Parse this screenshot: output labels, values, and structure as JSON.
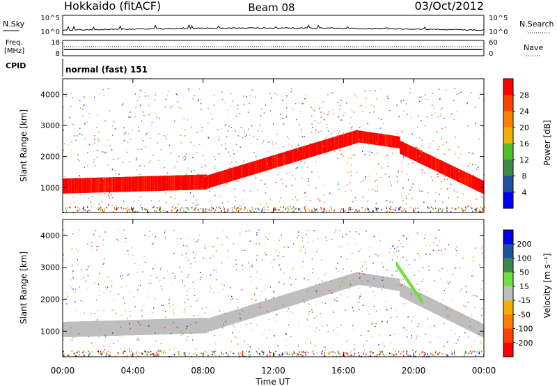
{
  "header": {
    "station": "Hokkaido (fitACF)",
    "beam": "Beam 08",
    "date": "03/Oct/2012"
  },
  "nsky_panel": {
    "left_label": "N.Sky",
    "right_label": "N.Search",
    "ticks": [
      "10^5",
      "10^0"
    ],
    "right_ticks": [
      "10^5",
      "10^0"
    ]
  },
  "freq_panel": {
    "left_label_line1": "Freq.",
    "left_label_line2": "[MHz]",
    "left_ticks": [
      "18",
      "8"
    ],
    "right_label": "Nave",
    "right_ticks": [
      "60",
      "0"
    ]
  },
  "cpid_panel": {
    "label": "CPID",
    "value": "normal (fast) 151"
  },
  "x_axis": {
    "label": "Time UT",
    "ticks": [
      "00:00",
      "04:00",
      "08:00",
      "12:00",
      "16:00",
      "20:00",
      "00:00"
    ]
  },
  "colors": {
    "power": [
      "#0000ee",
      "#2050a0",
      "#3a8a4a",
      "#4fbf2a",
      "#f0b000",
      "#ff8000",
      "#ff4000",
      "#ff0000"
    ],
    "velocity": [
      "#ff0000",
      "#ff4000",
      "#ff8000",
      "#f0b000",
      "#bebebe",
      "#70e040",
      "#3a8a4a",
      "#2050a0",
      "#0000ee"
    ],
    "ground_scatter": "#bebebe"
  },
  "chart_data": [
    {
      "type": "heatmap",
      "name": "power",
      "ylabel": "Slant Range [km]",
      "xlabel": "Time UT",
      "xlim": [
        0,
        24
      ],
      "ylim": [
        200,
        4500
      ],
      "y_ticks": [
        "1000",
        "2000",
        "3000",
        "4000"
      ],
      "colorbar": {
        "label": "Power [dB]",
        "ticks": [
          "4",
          "8",
          "12",
          "16",
          "20",
          "24",
          "28"
        ],
        "range": [
          0,
          32
        ]
      },
      "bands": [
        {
          "t": [
            0,
            8.2
          ],
          "r_center": [
            1050,
            1180
          ],
          "width": 480,
          "value": 26
        },
        {
          "t": [
            8.2,
            16.8
          ],
          "r_center": [
            1180,
            2650
          ],
          "width": 420,
          "value": 27
        },
        {
          "t": [
            16.8,
            19.2
          ],
          "r_center": [
            2650,
            2450
          ],
          "width": 380,
          "value": 24
        },
        {
          "t": [
            19.2,
            24
          ],
          "r_center": [
            2300,
            1000
          ],
          "width": 420,
          "value": 26
        }
      ]
    },
    {
      "type": "heatmap",
      "name": "velocity",
      "ylabel": "Slant Range [km]",
      "xlabel": "Time UT",
      "xlim": [
        0,
        24
      ],
      "ylim": [
        200,
        4500
      ],
      "y_ticks": [
        "1000",
        "2000",
        "3000",
        "4000"
      ],
      "colorbar": {
        "label": "Velocity [m s⁻¹]",
        "ticks": [
          "200",
          "100",
          "50",
          "15",
          "-15",
          "-50",
          "-100",
          "-200"
        ],
        "range": [
          -250,
          250
        ]
      },
      "bands": [
        {
          "t": [
            0,
            8.2
          ],
          "r_center": [
            1050,
            1180
          ],
          "width": 480,
          "value": 0
        },
        {
          "t": [
            8.2,
            16.8
          ],
          "r_center": [
            1180,
            2650
          ],
          "width": 420,
          "value": 0
        },
        {
          "t": [
            16.8,
            19.2
          ],
          "r_center": [
            2650,
            2450
          ],
          "width": 380,
          "value": 0
        },
        {
          "t": [
            19.2,
            24
          ],
          "r_center": [
            2300,
            1000
          ],
          "width": 420,
          "value": 0
        },
        {
          "t": [
            19.0,
            20.5
          ],
          "r_center": [
            3100,
            1900
          ],
          "width": 150,
          "value": 30
        }
      ]
    }
  ]
}
